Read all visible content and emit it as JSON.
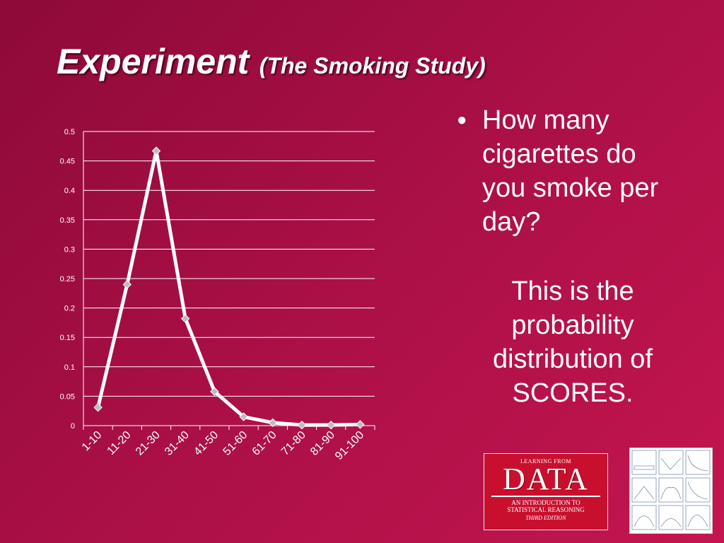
{
  "slide": {
    "title": "Experiment",
    "subtitle": "(The Smoking Study)",
    "bullet_marker": "●",
    "bullet_text": "How many cigarettes do you smoke per day?",
    "note_text": "This is the probability distribution of SCORES."
  },
  "book_logo": {
    "top_text": "LEARNING FROM",
    "big_text": "DATA",
    "intro_line1": "AN INTRODUCTION TO",
    "intro_line2": "STATISTICAL REASONING",
    "edition": "THIRD EDITION",
    "color": "#c8102e"
  },
  "colors": {
    "background_dark": "#8e0a38",
    "background_light": "#c41550",
    "line": "#ffffff",
    "marker": "#bdbdbd",
    "gridline": "#ffffff"
  },
  "chart_data": {
    "type": "line",
    "categories": [
      "1-10",
      "11-20",
      "21-30",
      "31-40",
      "41-50",
      "51-60",
      "61-70",
      "71-80",
      "81-90",
      "91-100"
    ],
    "series": [
      {
        "values": [
          0.031,
          0.24,
          0.467,
          0.182,
          0.058,
          0.015,
          0.005,
          0.001,
          0.001,
          0.002
        ]
      }
    ],
    "y_ticks": [
      "0",
      "0.05",
      "0.1",
      "0.15",
      "0.2",
      "0.25",
      "0.3",
      "0.35",
      "0.4",
      "0.45",
      "0.5"
    ],
    "ylim": [
      0,
      0.5
    ],
    "grid": true,
    "legend": false,
    "marker": "diamond"
  }
}
